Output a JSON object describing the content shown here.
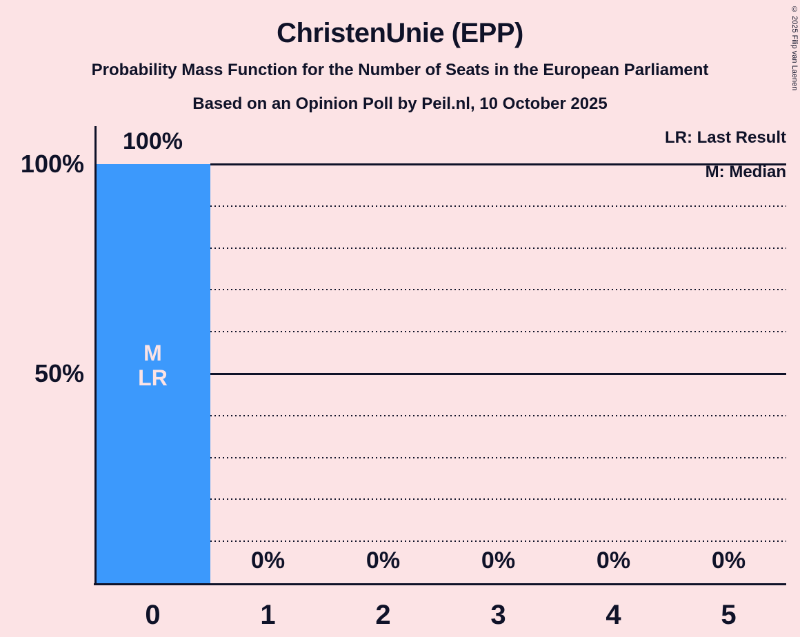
{
  "header": {
    "title": "ChristenUnie (EPP)",
    "subtitle1": "Probability Mass Function for the Number of Seats in the European Parliament",
    "subtitle2": "Based on an Opinion Poll by Peil.nl, 10 October 2025"
  },
  "copyright": "© 2025 Filip van Laenen",
  "legend": {
    "lr": "LR: Last Result",
    "m": "M: Median"
  },
  "chart_data": {
    "type": "bar",
    "title": "ChristenUnie (EPP)",
    "subtitle": "Probability Mass Function for the Number of Seats in the European Parliament",
    "source_note": "Based on an Opinion Poll by Peil.nl, 10 October 2025",
    "categories": [
      "0",
      "1",
      "2",
      "3",
      "4",
      "5"
    ],
    "values": [
      100,
      0,
      0,
      0,
      0,
      0
    ],
    "value_labels": [
      "100%",
      "0%",
      "0%",
      "0%",
      "0%",
      "0%"
    ],
    "xlabel": "",
    "ylabel": "",
    "ylim": [
      0,
      100
    ],
    "yticks_solid": [
      {
        "value": 100,
        "label": "100%"
      },
      {
        "value": 50,
        "label": "50%"
      }
    ],
    "yticks_dotted": [
      90,
      80,
      70,
      60,
      40,
      30,
      20,
      10
    ],
    "grid": "dotted every 10%, solid at 50% and 100%, lines start right of bar 0",
    "legend_position": "top-right",
    "median_seats": 0,
    "last_result_seats": 0,
    "bar_annotations": [
      {
        "index": 0,
        "lines": [
          "M",
          "LR"
        ]
      }
    ],
    "colors": {
      "background": "#fce3e5",
      "bar": "#3c99fc",
      "text": "#0f1228",
      "bar_annotation_text": "#fce3e5"
    }
  }
}
